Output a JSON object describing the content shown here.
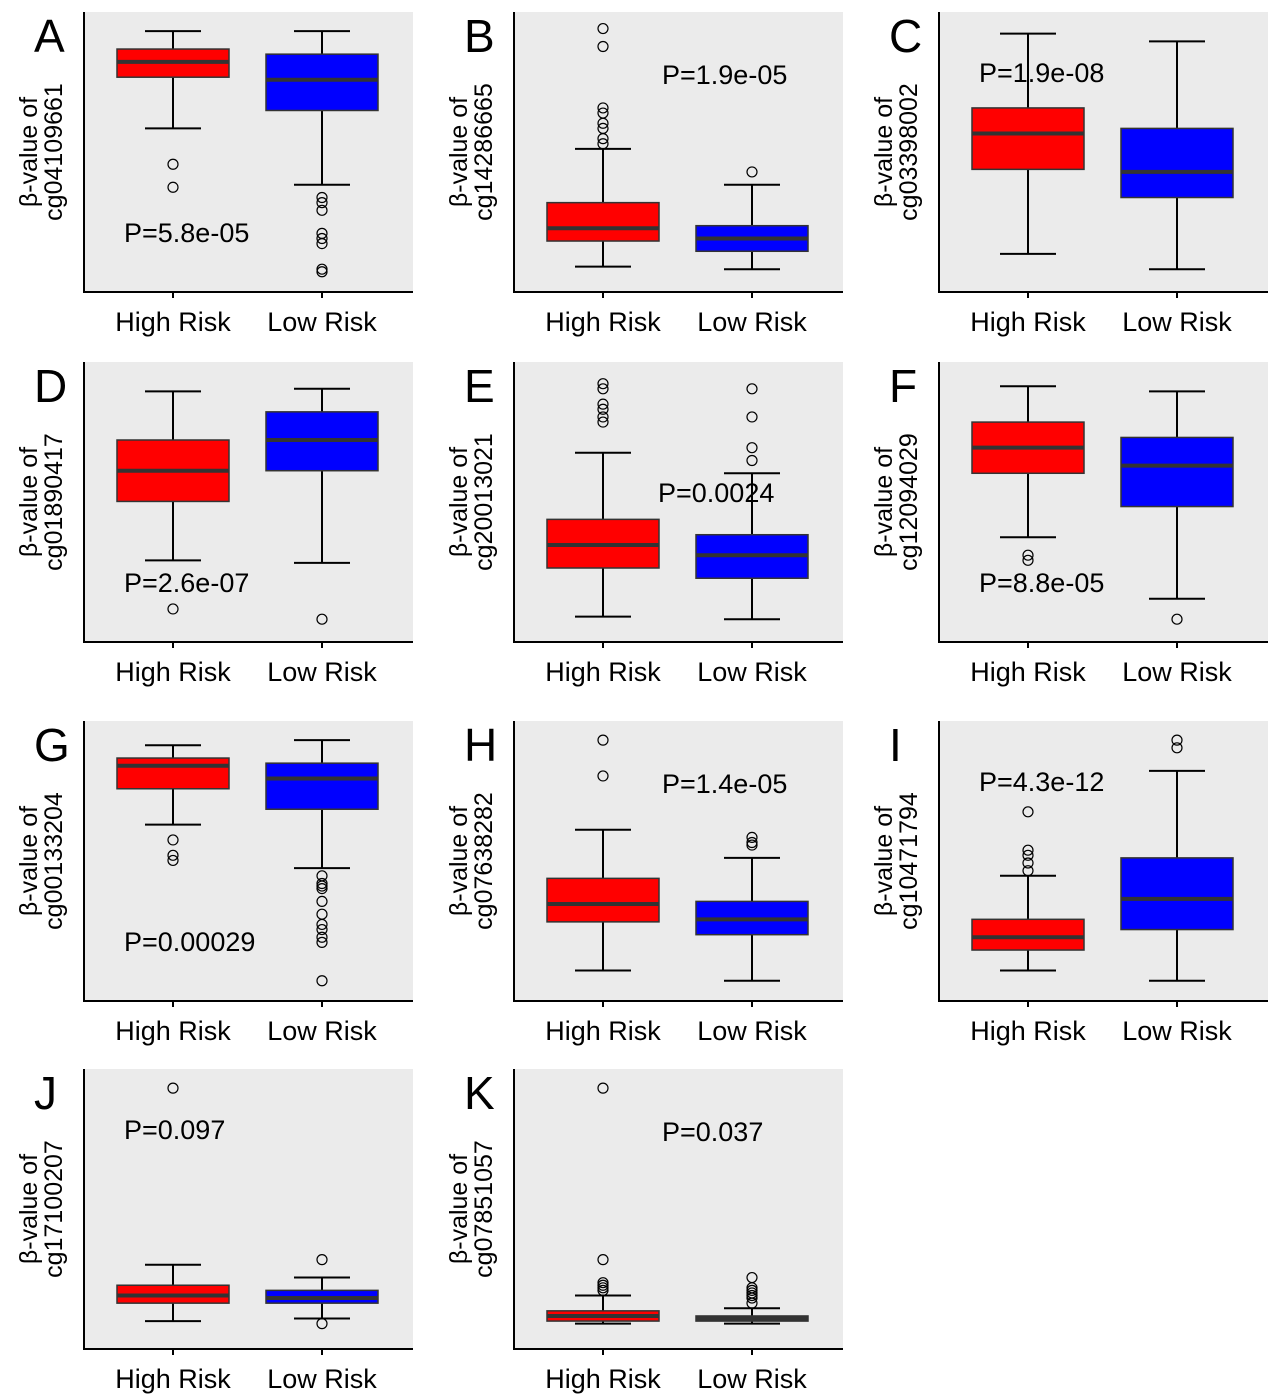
{
  "colors": {
    "high": "#ff0000",
    "low": "#0000ff",
    "panel_bg": "#ebebeb",
    "median": "#333333"
  },
  "chart_data": [
    {
      "type": "box",
      "panel": "A",
      "ylabel_line1": "β-value of",
      "ylabel_line2": "cg04109661",
      "categories": [
        "High Risk",
        "Low Risk"
      ],
      "p_value": "P=5.8e-05",
      "p_pos": "bottom-left",
      "ylim": [
        0,
        100
      ],
      "boxes": [
        {
          "name": "High Risk",
          "whisker_low": 60,
          "q1": 80,
          "median": 86,
          "q3": 91,
          "whisker_high": 98,
          "outliers": [
            46,
            37
          ]
        },
        {
          "name": "Low Risk",
          "whisker_low": 38,
          "q1": 67,
          "median": 79,
          "q3": 89,
          "whisker_high": 98,
          "outliers": [
            33,
            31,
            28,
            19,
            17,
            15,
            5,
            4
          ]
        }
      ]
    },
    {
      "type": "box",
      "panel": "B",
      "ylabel_line1": "β-value of",
      "ylabel_line2": "cg14286665",
      "categories": [
        "High Risk",
        "Low Risk"
      ],
      "p_value": "P=1.9e-05",
      "p_pos": "top-right",
      "ylim": [
        0,
        100
      ],
      "boxes": [
        {
          "name": "High Risk",
          "whisker_low": 6,
          "q1": 16,
          "median": 21,
          "q3": 31,
          "whisker_high": 52,
          "outliers": [
            99,
            92,
            68,
            66,
            62,
            60,
            56,
            54
          ]
        },
        {
          "name": "Low Risk",
          "whisker_low": 5,
          "q1": 12,
          "median": 17,
          "q3": 22,
          "whisker_high": 38,
          "outliers": [
            43
          ]
        }
      ]
    },
    {
      "type": "box",
      "panel": "C",
      "ylabel_line1": "β-value of",
      "ylabel_line2": "cg03398002",
      "categories": [
        "High Risk",
        "Low Risk"
      ],
      "p_value": "P=1.9e-08",
      "p_pos": "top-left",
      "ylim": [
        0,
        100
      ],
      "boxes": [
        {
          "name": "High Risk",
          "whisker_low": 11,
          "q1": 44,
          "median": 58,
          "q3": 68,
          "whisker_high": 97,
          "outliers": []
        },
        {
          "name": "Low Risk",
          "whisker_low": 5,
          "q1": 33,
          "median": 43,
          "q3": 60,
          "whisker_high": 94,
          "outliers": []
        }
      ]
    },
    {
      "type": "box",
      "panel": "D",
      "ylabel_line1": "β-value of",
      "ylabel_line2": "cg01890417",
      "categories": [
        "High Risk",
        "Low Risk"
      ],
      "p_value": "P=2.6e-07",
      "p_pos": "bottom-left",
      "ylim": [
        0,
        100
      ],
      "boxes": [
        {
          "name": "High Risk",
          "whisker_low": 28,
          "q1": 51,
          "median": 63,
          "q3": 75,
          "whisker_high": 94,
          "outliers": [
            9
          ]
        },
        {
          "name": "Low Risk",
          "whisker_low": 27,
          "q1": 63,
          "median": 75,
          "q3": 86,
          "whisker_high": 95,
          "outliers": [
            5
          ]
        }
      ]
    },
    {
      "type": "box",
      "panel": "E",
      "ylabel_line1": "β-value of",
      "ylabel_line2": "cg20013021",
      "categories": [
        "High Risk",
        "Low Risk"
      ],
      "p_value": "P=0.0024",
      "p_pos": "middle-right",
      "ylim": [
        0,
        100
      ],
      "boxes": [
        {
          "name": "High Risk",
          "whisker_low": 6,
          "q1": 25,
          "median": 34,
          "q3": 44,
          "whisker_high": 70,
          "outliers": [
            97,
            95,
            89,
            87,
            84,
            82
          ]
        },
        {
          "name": "Low Risk",
          "whisker_low": 5,
          "q1": 21,
          "median": 30,
          "q3": 38,
          "whisker_high": 62,
          "outliers": [
            95,
            84,
            72,
            67
          ]
        }
      ]
    },
    {
      "type": "box",
      "panel": "F",
      "ylabel_line1": "β-value of",
      "ylabel_line2": "cg12094029",
      "categories": [
        "High Risk",
        "Low Risk"
      ],
      "p_value": "P=8.8e-05",
      "p_pos": "bottom-left",
      "ylim": [
        0,
        100
      ],
      "boxes": [
        {
          "name": "High Risk",
          "whisker_low": 37,
          "q1": 62,
          "median": 72,
          "q3": 82,
          "whisker_high": 96,
          "outliers": [
            30,
            28
          ]
        },
        {
          "name": "Low Risk",
          "whisker_low": 13,
          "q1": 49,
          "median": 65,
          "q3": 76,
          "whisker_high": 94,
          "outliers": [
            5
          ]
        }
      ]
    },
    {
      "type": "box",
      "panel": "G",
      "ylabel_line1": "β-value of",
      "ylabel_line2": "cg00133204",
      "categories": [
        "High Risk",
        "Low Risk"
      ],
      "p_value": "P=0.00029",
      "p_pos": "bottom-left",
      "ylim": [
        0,
        100
      ],
      "boxes": [
        {
          "name": "High Risk",
          "whisker_low": 65,
          "q1": 79,
          "median": 88,
          "q3": 91,
          "whisker_high": 96,
          "outliers": [
            59,
            53,
            51
          ]
        },
        {
          "name": "Low Risk",
          "whisker_low": 48,
          "q1": 71,
          "median": 83,
          "q3": 89,
          "whisker_high": 98,
          "outliers": [
            45,
            42,
            41,
            40,
            35,
            30,
            26,
            24,
            21,
            19,
            4
          ]
        }
      ]
    },
    {
      "type": "box",
      "panel": "H",
      "ylabel_line1": "β-value of",
      "ylabel_line2": "cg07638282",
      "categories": [
        "High Risk",
        "Low Risk"
      ],
      "p_value": "P=1.4e-05",
      "p_pos": "top-right",
      "ylim": [
        0,
        100
      ],
      "boxes": [
        {
          "name": "High Risk",
          "whisker_low": 8,
          "q1": 27,
          "median": 34,
          "q3": 44,
          "whisker_high": 63,
          "outliers": [
            98,
            84
          ]
        },
        {
          "name": "Low Risk",
          "whisker_low": 4,
          "q1": 22,
          "median": 28,
          "q3": 35,
          "whisker_high": 52,
          "outliers": [
            60,
            58,
            57
          ]
        }
      ]
    },
    {
      "type": "box",
      "panel": "I",
      "ylabel_line1": "β-value of",
      "ylabel_line2": "cg10471794",
      "categories": [
        "High Risk",
        "Low Risk"
      ],
      "p_value": "P=4.3e-12",
      "p_pos": "top-left",
      "ylim": [
        0,
        100
      ],
      "boxes": [
        {
          "name": "High Risk",
          "whisker_low": 8,
          "q1": 16,
          "median": 21,
          "q3": 28,
          "whisker_high": 45,
          "outliers": [
            70,
            55,
            53,
            50,
            47
          ]
        },
        {
          "name": "Low Risk",
          "whisker_low": 4,
          "q1": 24,
          "median": 36,
          "q3": 52,
          "whisker_high": 86,
          "outliers": [
            95,
            98
          ]
        }
      ]
    },
    {
      "type": "box",
      "panel": "J",
      "ylabel_line1": "β-value of",
      "ylabel_line2": "cg17100207",
      "categories": [
        "High Risk",
        "Low Risk"
      ],
      "p_value": "P=0.097",
      "p_pos": "top-left",
      "ylim": [
        0,
        100
      ],
      "boxes": [
        {
          "name": "High Risk",
          "whisker_low": 7,
          "q1": 14,
          "median": 17,
          "q3": 21,
          "whisker_high": 29,
          "outliers": [
            98
          ]
        },
        {
          "name": "Low Risk",
          "whisker_low": 8,
          "q1": 14,
          "median": 16,
          "q3": 19,
          "whisker_high": 24,
          "outliers": [
            31,
            6
          ]
        }
      ]
    },
    {
      "type": "box",
      "panel": "K",
      "ylabel_line1": "β-value of",
      "ylabel_line2": "cg07851057",
      "categories": [
        "High Risk",
        "Low Risk"
      ],
      "p_value": "P=0.037",
      "p_pos": "top-right",
      "ylim": [
        0,
        100
      ],
      "boxes": [
        {
          "name": "High Risk",
          "whisker_low": 6,
          "q1": 7,
          "median": 9,
          "q3": 11,
          "whisker_high": 17,
          "outliers": [
            98,
            31,
            22,
            21,
            20,
            19
          ]
        },
        {
          "name": "Low Risk",
          "whisker_low": 6,
          "q1": 7,
          "median": 8,
          "q3": 9,
          "whisker_high": 12,
          "outliers": [
            24,
            20,
            19,
            18,
            17,
            16,
            14
          ]
        }
      ]
    }
  ]
}
